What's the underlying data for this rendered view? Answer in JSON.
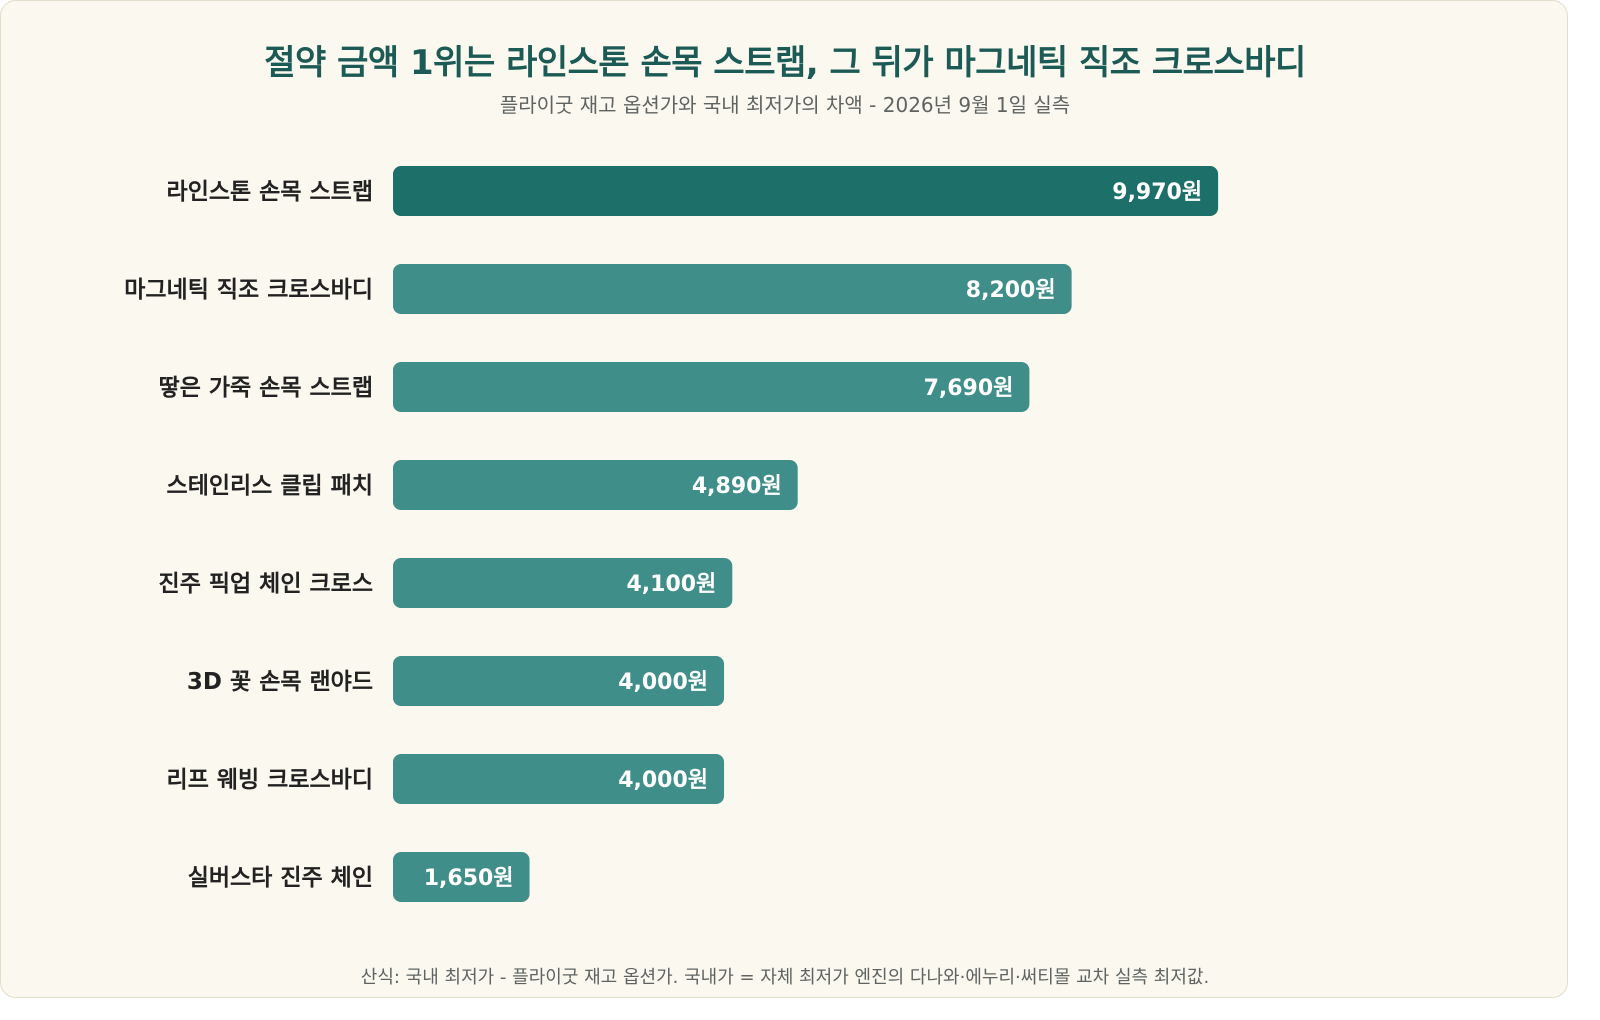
{
  "chart_data": {
    "type": "bar",
    "orientation": "horizontal",
    "title": "절약 금액 1위는 라인스톤 손목 스트랩, 그 뒤가 마그네틱 직조 크로스바디",
    "subtitle": "플라이굿 재고 옵션가와 국내 최저가의 차액 - 2026년 9월 1일 실측",
    "categories": [
      "라인스톤 손목 스트랩",
      "마그네틱 직조 크로스바디",
      "땋은 가죽 손목 스트랩",
      "스테인리스 클립 패치",
      "진주 픽업 체인 크로스",
      "3D 꽃 손목 랜야드",
      "리프 웨빙 크로스바디",
      "실버스타 진주 체인"
    ],
    "values": [
      9970,
      8200,
      7690,
      4890,
      4100,
      4000,
      4000,
      1650
    ],
    "value_labels": [
      "9,970원",
      "8,200원",
      "7,690원",
      "4,890원",
      "4,100원",
      "4,000원",
      "4,000원",
      "1,650원"
    ],
    "highlight_index": 0,
    "xlim": [
      0,
      11600
    ],
    "colors": {
      "highlight": "#1d6f6a",
      "bar": "#3f8e89",
      "label_text": "#222222",
      "value_text": "#ffffff"
    },
    "grid": false,
    "legend": "none"
  },
  "footnote": "산식: 국내 최저가 - 플라이굿 재고 옵션가. 국내가 = 자체 최저가 엔진의 다나와·에누리·써티몰 교차 실측 최저값."
}
